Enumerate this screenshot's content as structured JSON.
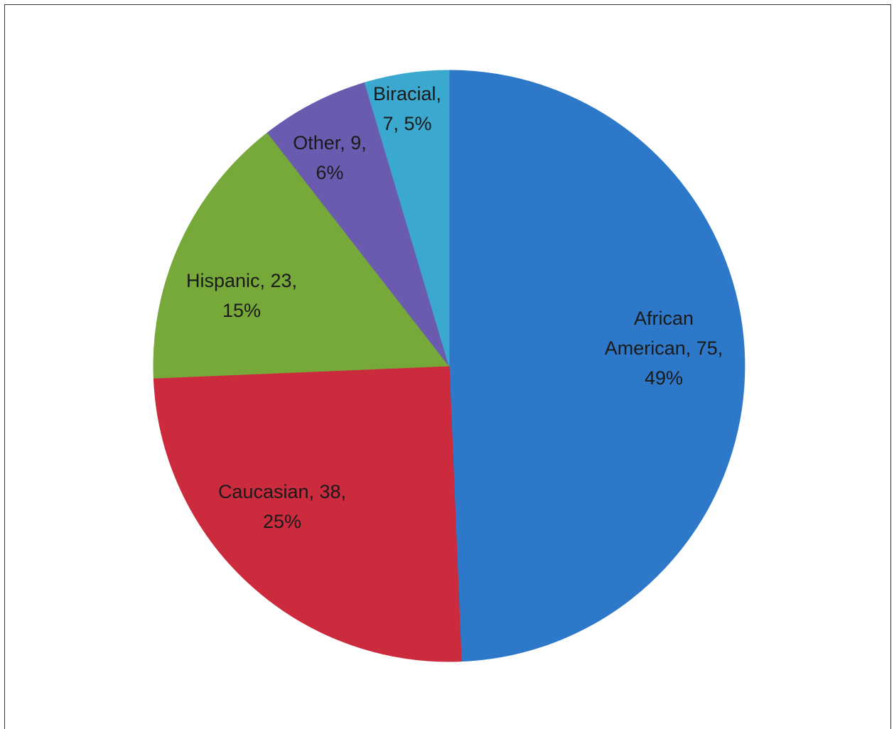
{
  "chart_data": {
    "type": "pie",
    "start_angle_deg": 0,
    "direction": "clockwise",
    "slices": [
      {
        "label": "African American",
        "value": 75,
        "percent": "49%",
        "color": "#2d78c8",
        "text": [
          "African",
          "American, 75,",
          "49%"
        ]
      },
      {
        "label": "Caucasian",
        "value": 38,
        "percent": "25%",
        "color": "#cc2a3d",
        "text": [
          "Caucasian, 38,",
          "25%"
        ]
      },
      {
        "label": "Hispanic",
        "value": 23,
        "percent": "15%",
        "color": "#76a83a",
        "text": [
          "Hispanic, 23,",
          "15%"
        ]
      },
      {
        "label": "Other",
        "value": 9,
        "percent": "6%",
        "color": "#6a5bb0",
        "text": [
          "Other, 9,",
          "6%"
        ]
      },
      {
        "label": "Biracial",
        "value": 7,
        "percent": "5%",
        "color": "#3aa8cf",
        "text": [
          "Biracial,",
          "7, 5%"
        ]
      }
    ]
  }
}
